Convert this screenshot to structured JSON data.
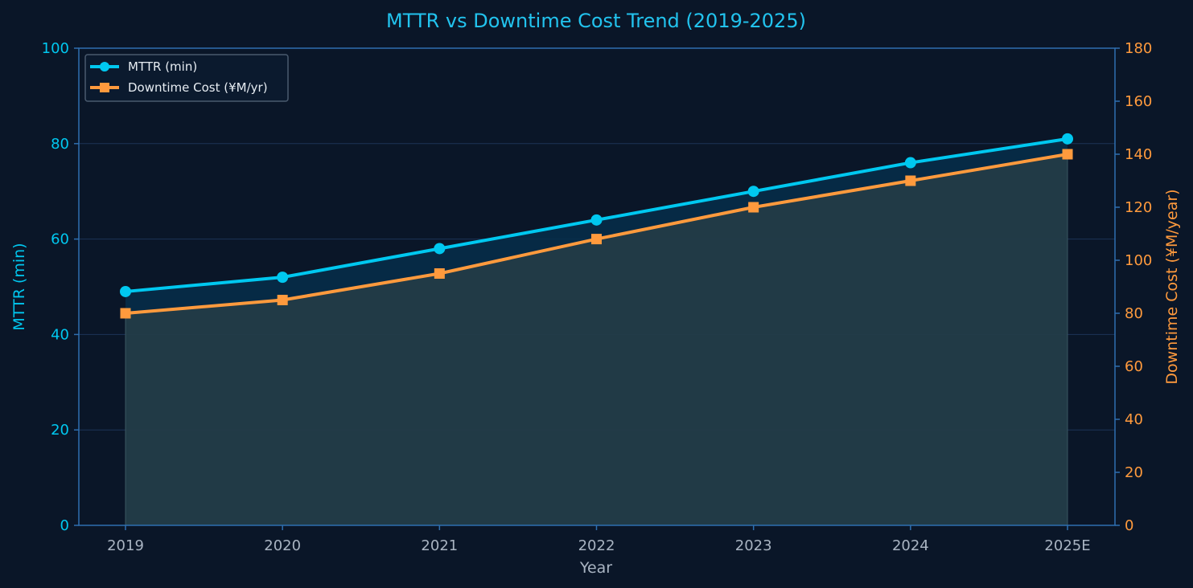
{
  "colors": {
    "background": "#0a1628",
    "spine": "#2e6fb0",
    "grid": "#1c3357",
    "mttr": "#00c8f0",
    "cost": "#ff9a3d",
    "tick": "#a9b4c2",
    "title": "#22c3ee",
    "legend_text": "#e6ecf2",
    "legend_border": "#4a5a6e",
    "legend_bg": "#0b1a2e",
    "fill_between": "#062e4a",
    "fill_cost": "#233c48"
  },
  "chart_data": {
    "type": "line",
    "title": "MTTR vs Downtime Cost Trend (2019-2025)",
    "xlabel": "Year",
    "ylabel": "MTTR (min)",
    "y2label": "Downtime Cost (¥M/year)",
    "categories": [
      "2019",
      "2020",
      "2021",
      "2022",
      "2023",
      "2024",
      "2025E"
    ],
    "ylim": [
      0,
      100
    ],
    "y2lim": [
      0,
      180
    ],
    "yticks": [
      0,
      20,
      40,
      60,
      80,
      100
    ],
    "y2ticks": [
      0,
      20,
      40,
      60,
      80,
      100,
      120,
      140,
      160,
      180
    ],
    "grid": true,
    "legend_position": "top-left",
    "series": [
      {
        "name": "MTTR (min)",
        "axis": "left",
        "marker": "circle",
        "values": [
          49,
          52,
          58,
          64,
          70,
          76,
          81
        ]
      },
      {
        "name": "Downtime Cost (¥M/yr)",
        "axis": "right",
        "marker": "square",
        "values": [
          80,
          85,
          95,
          108,
          120,
          130,
          140
        ]
      }
    ]
  }
}
